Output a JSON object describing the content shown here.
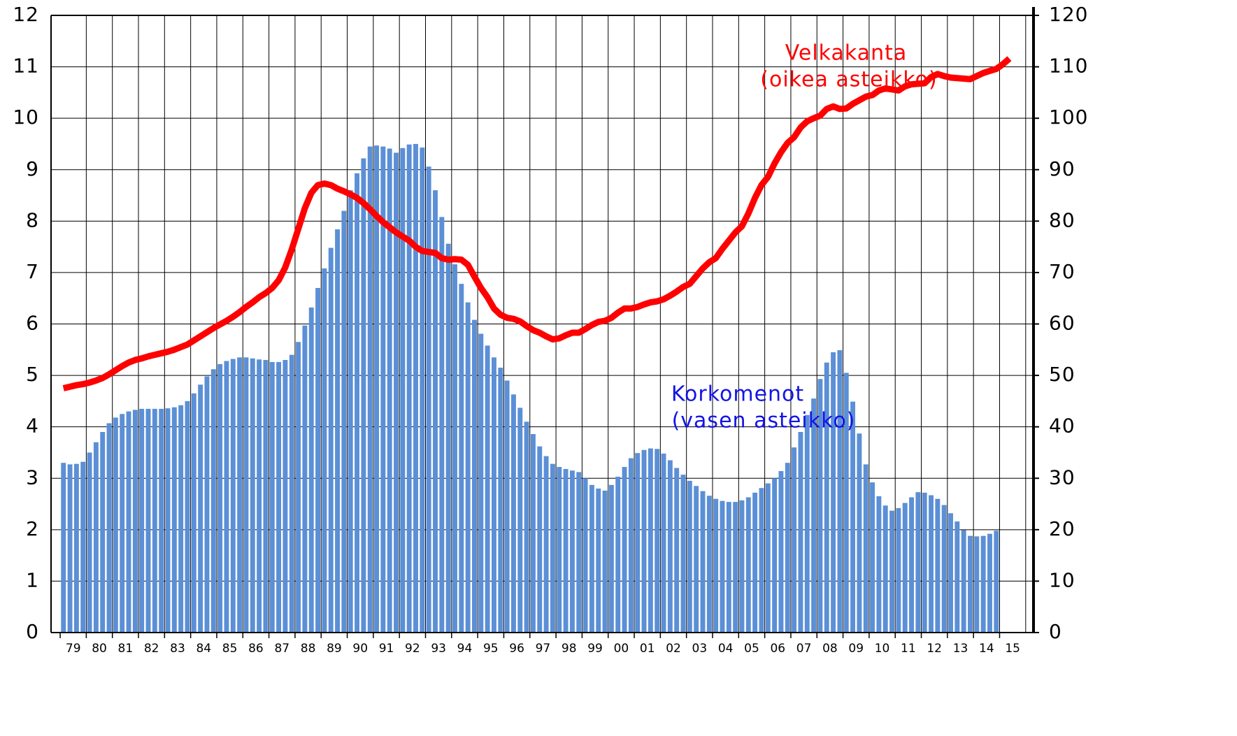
{
  "chart_data": {
    "type": "bar",
    "categories": [
      null,
      "79",
      null,
      null,
      null,
      "80",
      null,
      null,
      null,
      "81",
      null,
      null,
      null,
      "82",
      null,
      null,
      null,
      "83",
      null,
      null,
      null,
      "84",
      null,
      null,
      null,
      "85",
      null,
      null,
      null,
      "86",
      null,
      null,
      null,
      "87",
      null,
      null,
      null,
      "88",
      null,
      null,
      null,
      "89",
      null,
      null,
      null,
      "90",
      null,
      null,
      null,
      "91",
      null,
      null,
      null,
      "92",
      null,
      null,
      null,
      "93",
      null,
      null,
      null,
      "94",
      null,
      null,
      null,
      "95",
      null,
      null,
      null,
      "96",
      null,
      null,
      null,
      "97",
      null,
      null,
      null,
      "98",
      null,
      null,
      null,
      "99",
      null,
      null,
      null,
      "00",
      null,
      null,
      null,
      "01",
      null,
      null,
      null,
      "02",
      null,
      null,
      null,
      "03",
      null,
      null,
      null,
      "04",
      null,
      null,
      null,
      "05",
      null,
      null,
      null,
      "06",
      null,
      null,
      null,
      "07",
      null,
      null,
      null,
      "08",
      null,
      null,
      null,
      "09",
      null,
      null,
      null,
      "10",
      null,
      null,
      null,
      "11",
      null,
      null,
      null,
      "12",
      null,
      null,
      null,
      "13",
      null,
      null,
      null,
      "14",
      null,
      null,
      null,
      "15",
      null,
      null
    ],
    "series": [
      {
        "name": "Korkomenot",
        "type": "bar",
        "color": "#5b8fd6",
        "values": [
          3.3,
          3.27,
          3.28,
          3.32,
          3.5,
          3.7,
          3.9,
          4.07,
          4.18,
          4.25,
          4.3,
          4.33,
          4.35,
          4.35,
          4.35,
          4.35,
          4.36,
          4.38,
          4.42,
          4.5,
          4.65,
          4.82,
          4.98,
          5.12,
          5.22,
          5.28,
          5.32,
          5.35,
          5.35,
          5.33,
          5.31,
          5.3,
          5.26,
          5.26,
          5.3,
          5.4,
          5.65,
          5.97,
          6.32,
          6.7,
          7.08,
          7.48,
          7.84,
          8.2,
          8.6,
          8.93,
          9.22,
          9.45,
          9.47,
          9.45,
          9.41,
          9.33,
          9.42,
          9.49,
          9.5,
          9.43,
          9.06,
          8.6,
          8.08,
          7.56,
          7.16,
          6.78,
          6.42,
          6.08,
          5.81,
          5.58,
          5.35,
          5.15,
          4.9,
          4.63,
          4.37,
          4.1,
          3.86,
          3.62,
          3.43,
          3.28,
          3.22,
          3.18,
          3.15,
          3.12,
          3.0,
          2.87,
          2.8,
          2.76,
          2.87,
          3.03,
          3.22,
          3.39,
          3.49,
          3.55,
          3.58,
          3.57,
          3.48,
          3.35,
          3.2,
          3.07,
          2.95,
          2.85,
          2.75,
          2.66,
          2.6,
          2.56,
          2.54,
          2.54,
          2.57,
          2.63,
          2.72,
          2.81,
          2.9,
          3.0,
          3.14,
          3.3,
          3.6,
          3.9,
          4.23,
          4.55,
          4.93,
          5.25,
          5.45,
          5.49,
          5.05,
          4.49,
          3.87,
          3.27,
          2.92,
          2.65,
          2.47,
          2.37,
          2.42,
          2.52,
          2.63,
          2.73,
          2.72,
          2.67,
          2.6,
          2.48,
          2.32,
          2.16,
          1.99,
          1.88,
          1.87,
          1.88,
          1.92,
          1.98,
          null,
          null,
          null,
          null
        ]
      },
      {
        "name": "Velkakanta",
        "type": "line",
        "axis": "y2",
        "color": "#ff0000",
        "values": [
          47.5,
          47.8,
          48.1,
          48.3,
          48.6,
          49.0,
          49.5,
          50.2,
          51.0,
          51.8,
          52.5,
          53.0,
          53.3,
          53.7,
          54.0,
          54.3,
          54.6,
          55.0,
          55.5,
          56.0,
          56.8,
          57.6,
          58.4,
          59.2,
          59.9,
          60.6,
          61.4,
          62.3,
          63.3,
          64.2,
          65.2,
          66.0,
          67.0,
          68.5,
          71.0,
          74.5,
          78.5,
          82.5,
          85.5,
          87.0,
          87.3,
          87.0,
          86.3,
          85.8,
          85.2,
          84.5,
          83.5,
          82.3,
          81.0,
          79.8,
          78.8,
          77.8,
          77.0,
          76.2,
          75.0,
          74.2,
          74.0,
          73.8,
          72.8,
          72.5,
          72.6,
          72.5,
          71.5,
          69.2,
          67.0,
          65.2,
          63.0,
          61.8,
          61.2,
          61.0,
          60.5,
          59.6,
          58.8,
          58.3,
          57.6,
          57.0,
          57.2,
          57.8,
          58.3,
          58.3,
          59.0,
          59.8,
          60.4,
          60.6,
          61.2,
          62.2,
          63.0,
          63.0,
          63.3,
          63.8,
          64.2,
          64.4,
          64.8,
          65.5,
          66.3,
          67.2,
          67.8,
          69.3,
          70.8,
          72.0,
          72.8,
          74.6,
          76.2,
          77.8,
          79.0,
          81.5,
          84.5,
          87.0,
          88.6,
          91.2,
          93.4,
          95.2,
          96.3,
          98.2,
          99.4,
          100.0,
          100.5,
          101.8,
          102.3,
          101.8,
          101.9,
          102.8,
          103.5,
          104.2,
          104.5,
          105.4,
          105.8,
          105.6,
          105.4,
          106.2,
          106.6,
          106.7,
          106.8,
          108.0,
          108.6,
          108.2,
          107.9,
          107.8,
          107.7,
          107.6,
          108.2,
          108.8,
          109.2,
          109.6,
          110.5,
          111.6,
          null,
          null
        ]
      }
    ],
    "annotations": [
      "(vasen asteikko)",
      "(oikea asteikko)"
    ],
    "ylim": [
      0,
      12
    ],
    "yticks": [
      0,
      1,
      2,
      3,
      4,
      5,
      6,
      7,
      8,
      9,
      10,
      11,
      12
    ],
    "y2lim": [
      0,
      120
    ],
    "y2ticks": [
      0,
      10,
      20,
      30,
      40,
      50,
      60,
      70,
      80,
      90,
      100,
      110,
      120
    ],
    "grid": true
  }
}
